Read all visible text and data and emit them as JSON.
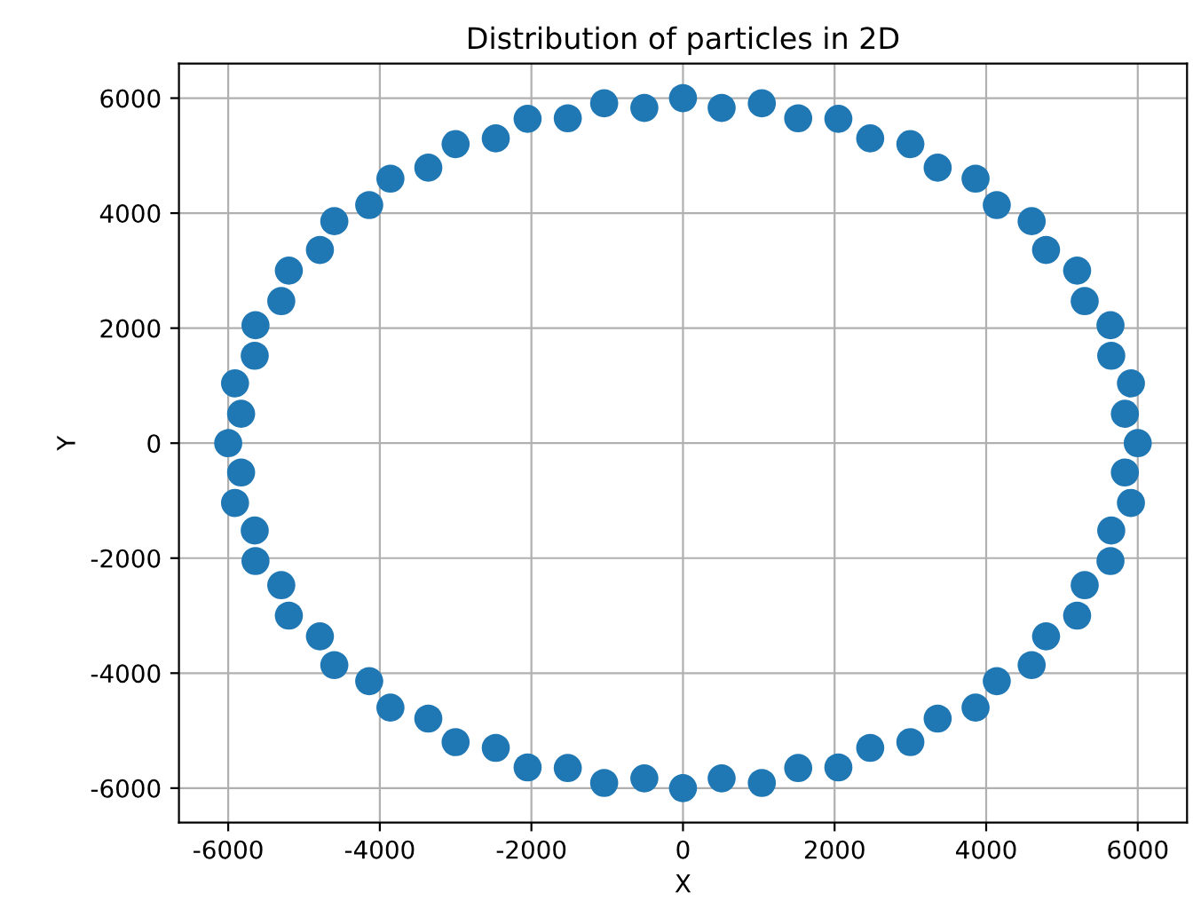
{
  "chart_data": {
    "type": "scatter",
    "title": "Distribution of particles in 2D",
    "xlabel": "X",
    "ylabel": "Y",
    "xlim": [
      -6650,
      6650
    ],
    "ylim": [
      -6600,
      6600
    ],
    "xticks": [
      -6000,
      -4000,
      -2000,
      0,
      2000,
      4000,
      6000
    ],
    "yticks": [
      -6000,
      -4000,
      -2000,
      0,
      2000,
      4000,
      6000
    ],
    "grid": true,
    "marker": "circle",
    "series": [
      {
        "color": "#1f77b4",
        "x": [
          6000,
          5830,
          5910,
          5650,
          5640,
          5300,
          5200,
          4790,
          4600,
          4140,
          3860,
          3360,
          3000,
          2470,
          2050,
          1520,
          1040,
          510,
          0,
          -510,
          -1040,
          -1520,
          -2050,
          -2470,
          -3000,
          -3360,
          -3860,
          -4140,
          -4600,
          -4790,
          -5200,
          -5300,
          -5640,
          -5650,
          -5910,
          -5830,
          -6000,
          -5830,
          -5910,
          -5650,
          -5640,
          -5300,
          -5200,
          -4790,
          -4600,
          -4140,
          -3860,
          -3360,
          -3000,
          -2470,
          -2050,
          -1520,
          -1040,
          -510,
          0,
          510,
          1040,
          1520,
          2050,
          2470,
          3000,
          3360,
          3860,
          4140,
          4600,
          4790,
          5200,
          5300,
          5640,
          5650,
          5910,
          5830
        ],
        "values": [
          0,
          510,
          1040,
          1520,
          2050,
          2470,
          3000,
          3360,
          3860,
          4140,
          4600,
          4790,
          5200,
          5300,
          5640,
          5650,
          5910,
          5830,
          6000,
          5830,
          5910,
          5650,
          5640,
          5300,
          5200,
          4790,
          4600,
          4140,
          3860,
          3360,
          3000,
          2470,
          2050,
          1520,
          1040,
          510,
          0,
          -510,
          -1040,
          -1520,
          -2050,
          -2470,
          -3000,
          -3360,
          -3860,
          -4140,
          -4600,
          -4790,
          -5200,
          -5300,
          -5640,
          -5650,
          -5910,
          -5830,
          -6000,
          -5830,
          -5910,
          -5650,
          -5640,
          -5300,
          -5200,
          -4790,
          -4600,
          -4140,
          -3860,
          -3360,
          -3000,
          -2470,
          -2050,
          -1520,
          -1040,
          -510
        ]
      }
    ]
  }
}
